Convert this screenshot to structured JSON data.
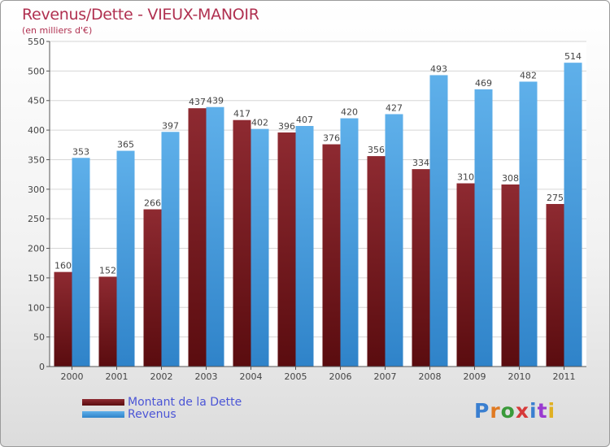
{
  "header": {
    "title": "Revenus/Dette - VIEUX-MANOIR",
    "subtitle": "(en milliers d'€)"
  },
  "legend": {
    "debt_label": "Montant de la Dette",
    "revenue_label": "Revenus"
  },
  "logo": {
    "text": "Proxiti"
  },
  "colors": {
    "debt": "#7a1f24",
    "revenue": "#4fa3e0",
    "title": "#b03050",
    "legend_text": "#4b55d6"
  },
  "chart_data": {
    "type": "bar",
    "title": "Revenus/Dette - VIEUX-MANOIR",
    "subtitle": "(en milliers d'€)",
    "categories": [
      "2000",
      "2001",
      "2002",
      "2003",
      "2004",
      "2005",
      "2006",
      "2007",
      "2008",
      "2009",
      "2010",
      "2011"
    ],
    "series": [
      {
        "name": "Montant de la Dette",
        "values": [
          160,
          152,
          266,
          437,
          417,
          396,
          376,
          356,
          334,
          310,
          308,
          275
        ]
      },
      {
        "name": "Revenus",
        "values": [
          353,
          365,
          397,
          439,
          402,
          407,
          420,
          427,
          493,
          469,
          482,
          514
        ]
      }
    ],
    "ylim": [
      0,
      550
    ],
    "yticks": [
      0,
      50,
      100,
      150,
      200,
      250,
      300,
      350,
      400,
      450,
      500,
      550
    ],
    "grid": true,
    "legend_position": "bottom-left"
  }
}
